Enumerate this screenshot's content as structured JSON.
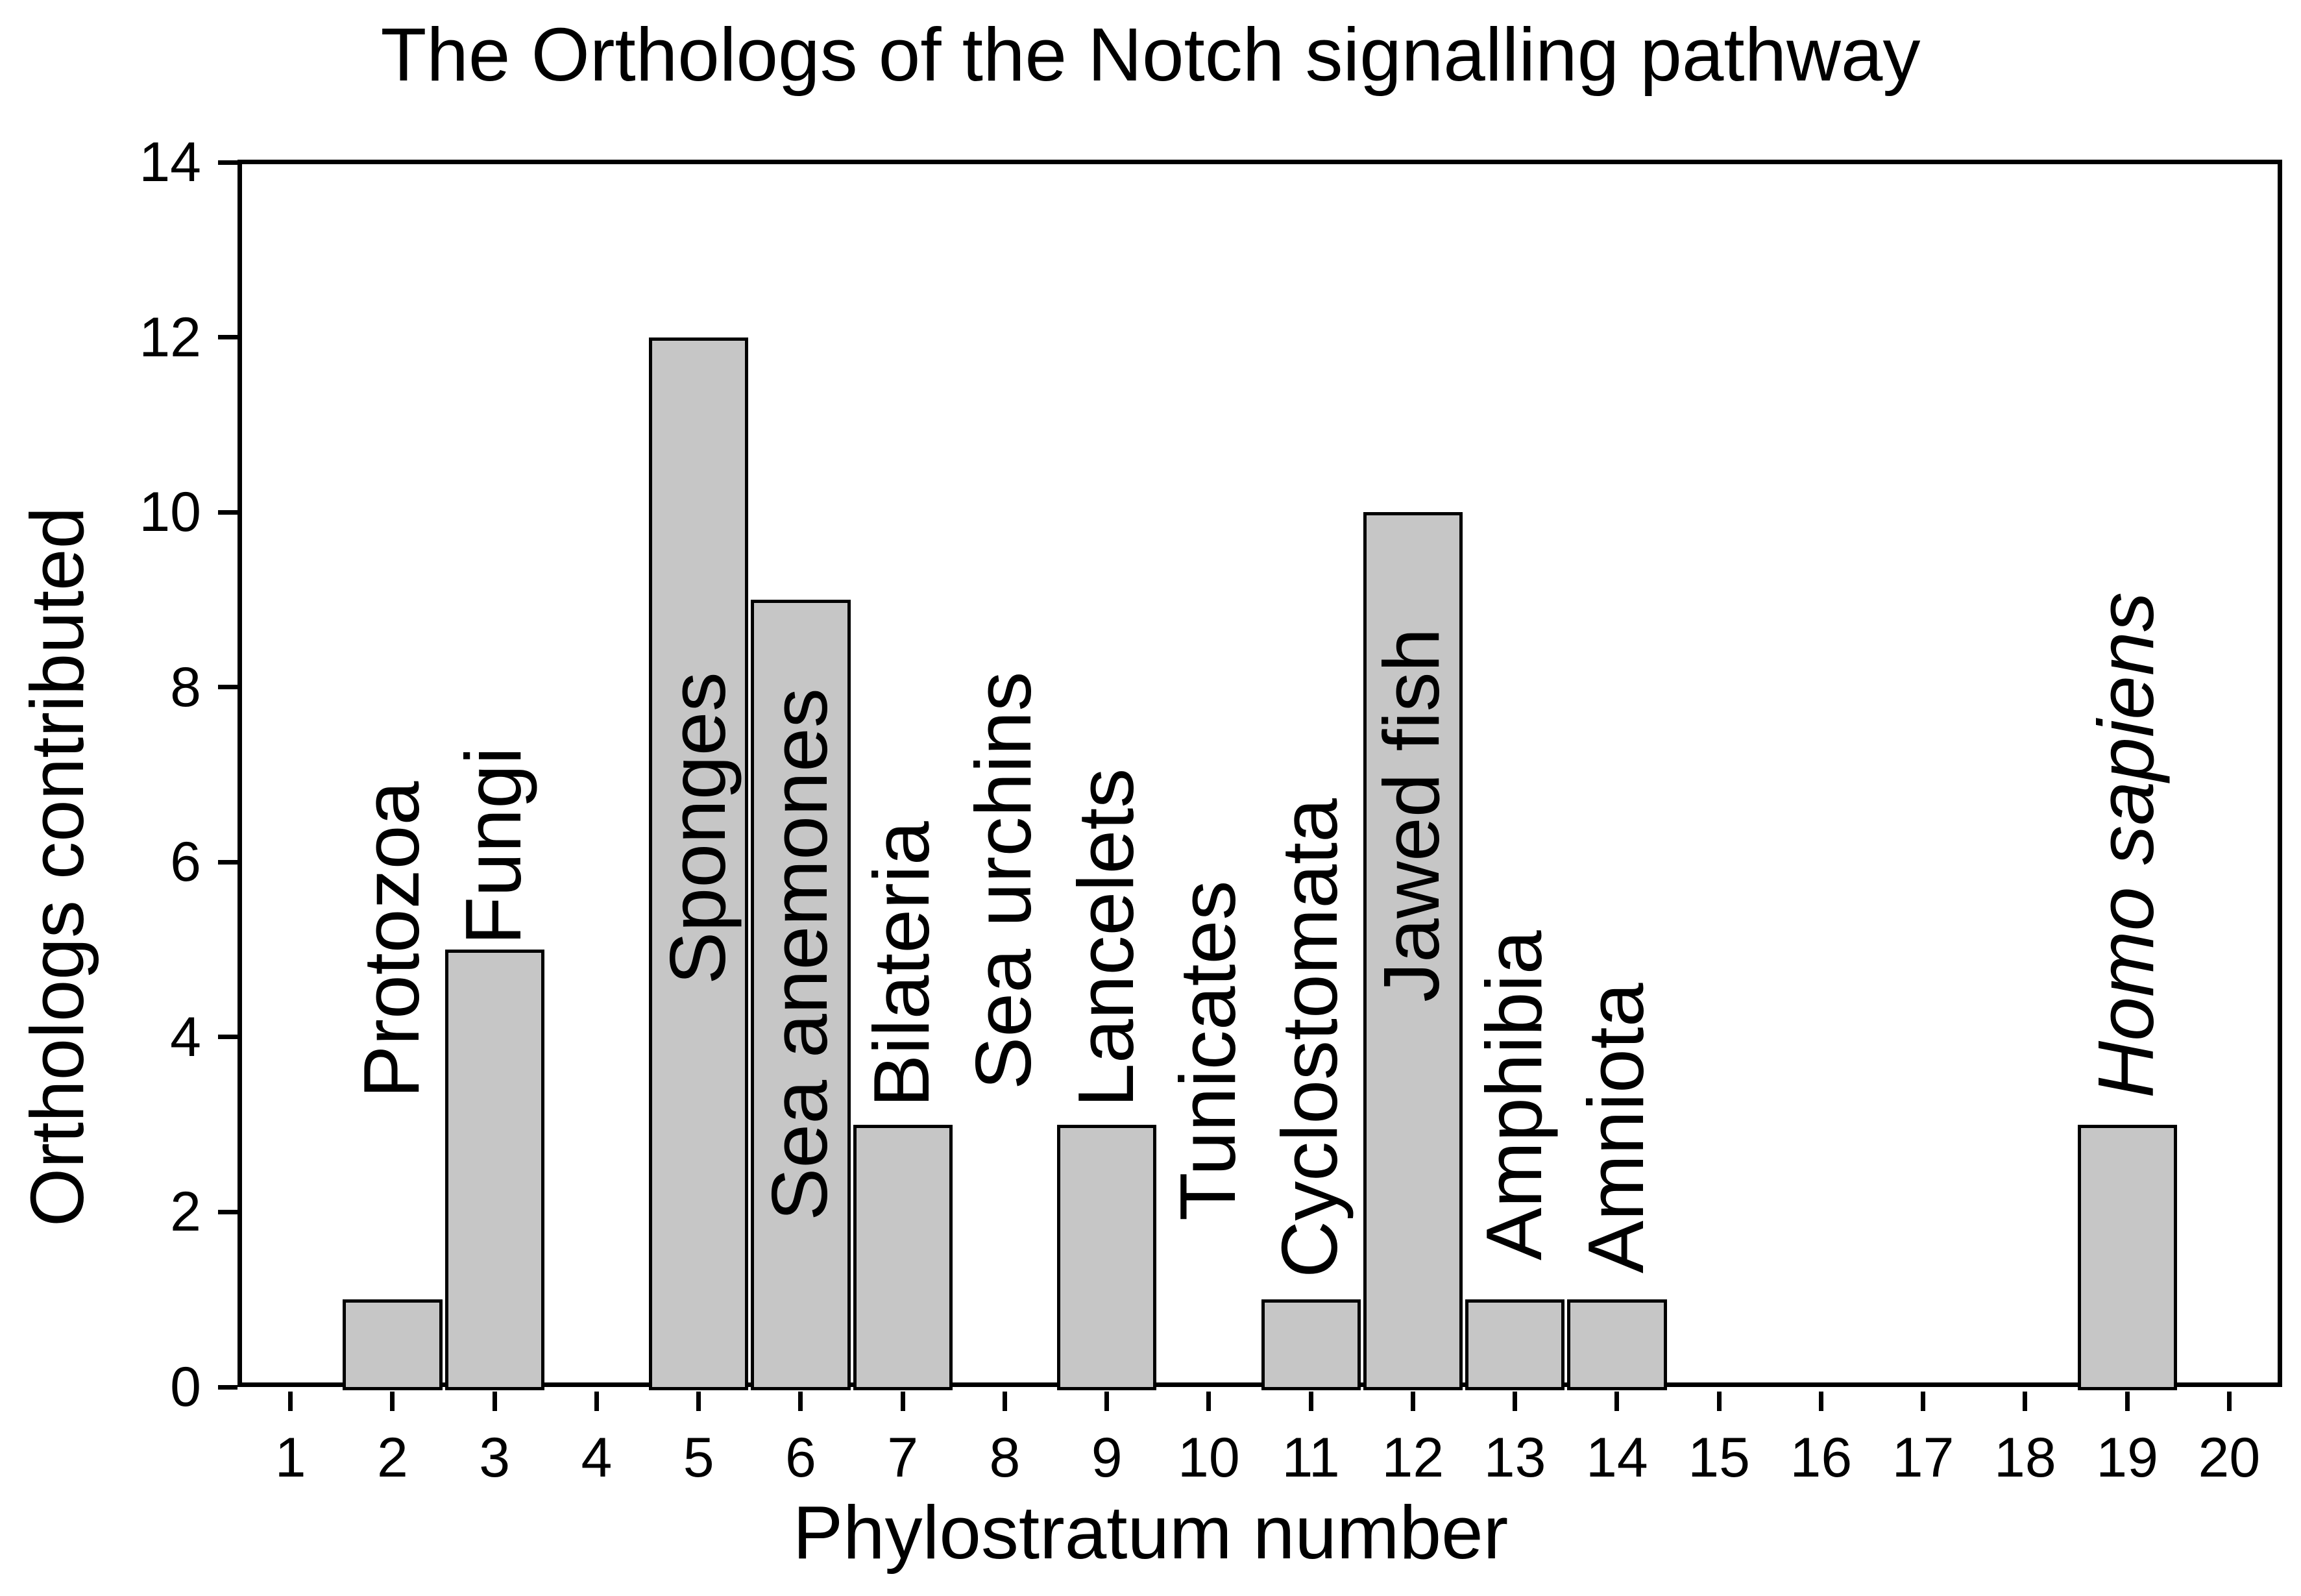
{
  "chart_data": {
    "type": "bar",
    "title": "The Orthologs of the Notch signalling pathway",
    "xlabel": "Phylostratum number",
    "ylabel": "Orthologs contributed",
    "ylim": [
      0,
      14
    ],
    "y_ticks": [
      0,
      2,
      4,
      6,
      8,
      10,
      12,
      14
    ],
    "x_ticks": [
      1,
      2,
      3,
      4,
      5,
      6,
      7,
      8,
      9,
      10,
      11,
      12,
      13,
      14,
      15,
      16,
      17,
      18,
      19,
      20
    ],
    "grid": "off",
    "legend": "none",
    "bar_fill_color": "#c6c6c6",
    "bar_border_color": "#000000",
    "values_by_phylostratum": [
      0,
      1,
      5,
      0,
      12,
      9,
      3,
      0,
      3,
      0,
      1,
      10,
      1,
      1,
      0,
      0,
      0,
      0,
      3,
      0
    ],
    "categories": [
      {
        "x": 2,
        "value": 1,
        "label": "Protozoa",
        "italic": false,
        "label_bottom": 3.3
      },
      {
        "x": 3,
        "value": 5,
        "label": "Fungi",
        "italic": false,
        "label_bottom": 5.05
      },
      {
        "x": 5,
        "value": 12,
        "label": "Sponges",
        "italic": false,
        "label_bottom": 4.6
      },
      {
        "x": 6,
        "value": 9,
        "label": "Sea anemones",
        "italic": false,
        "label_bottom": 1.9
      },
      {
        "x": 7,
        "value": 3,
        "label": "Bilateria",
        "italic": false,
        "label_bottom": 3.2
      },
      {
        "x": 8,
        "value": 0,
        "label": "Sea urchins",
        "italic": false,
        "label_bottom": 3.4
      },
      {
        "x": 9,
        "value": 3,
        "label": "Lancelets",
        "italic": false,
        "label_bottom": 3.2
      },
      {
        "x": 10,
        "value": 0,
        "label": "Tunicates",
        "italic": false,
        "label_bottom": 1.9
      },
      {
        "x": 11,
        "value": 1,
        "label": "Cyclostomata",
        "italic": false,
        "label_bottom": 1.25
      },
      {
        "x": 12,
        "value": 10,
        "label": "Jawed fish",
        "italic": false,
        "label_bottom": 4.4
      },
      {
        "x": 13,
        "value": 1,
        "label": "Amphibia",
        "italic": false,
        "label_bottom": 1.45
      },
      {
        "x": 14,
        "value": 1,
        "label": "Amniota",
        "italic": false,
        "label_bottom": 1.3
      },
      {
        "x": 19,
        "value": 3,
        "label": "Homo sapiens",
        "italic": true,
        "label_bottom": 3.3
      }
    ]
  }
}
